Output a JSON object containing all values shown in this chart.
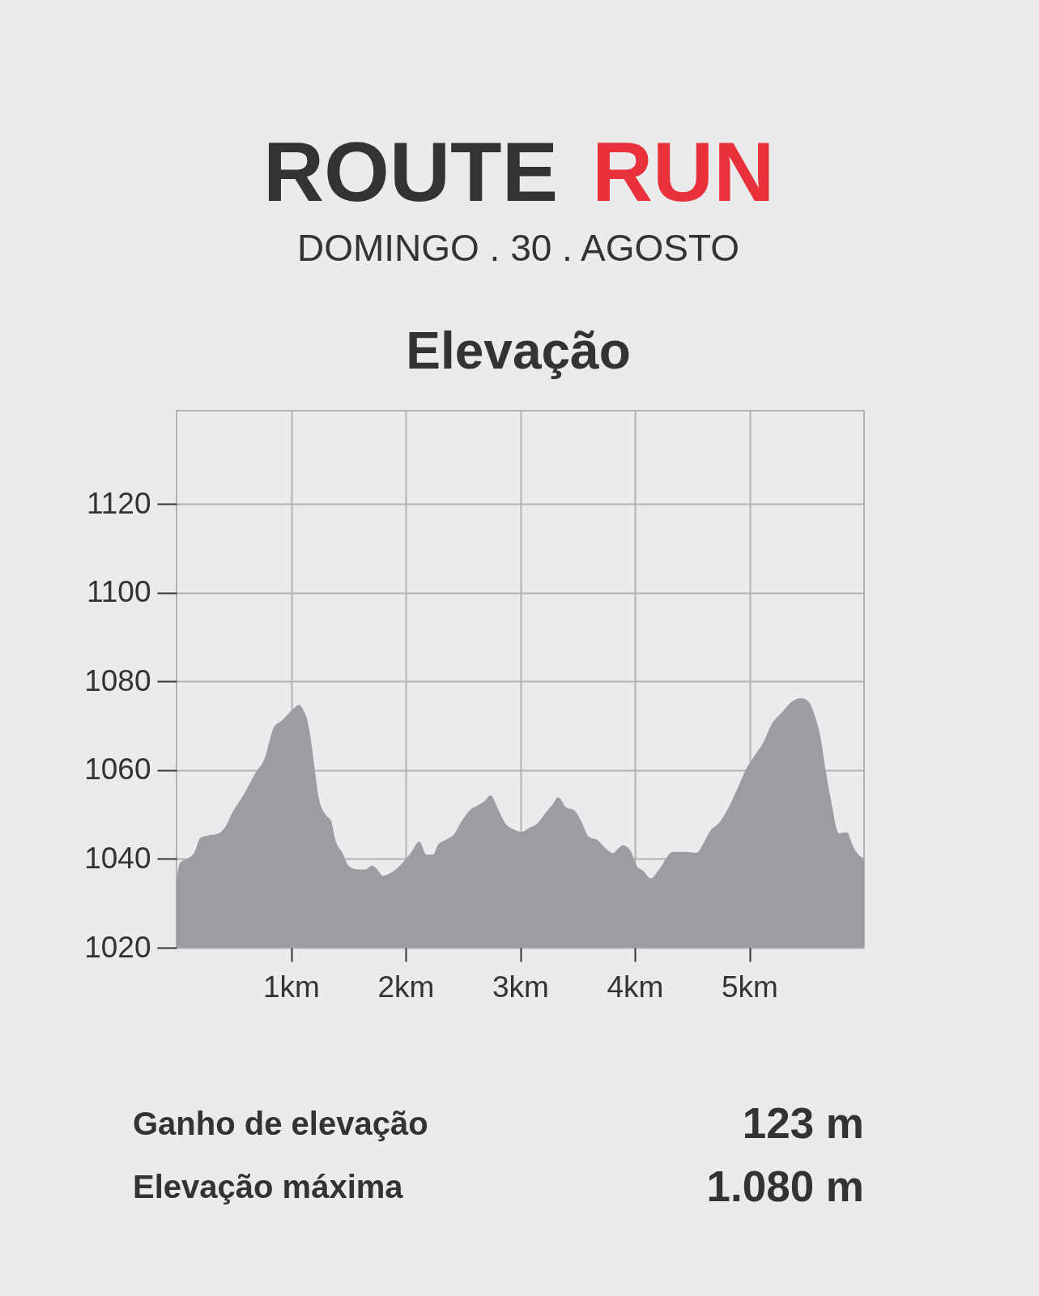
{
  "chart_data": {
    "type": "area",
    "title": "ROUTE RUN",
    "subtitle": "DOMINGO . 30 . AGOSTO",
    "annotations": [
      "Elevação",
      "Ganho de elevação",
      "123 m",
      "Elevação máxima",
      "1.080 m"
    ],
    "x": [
      0.0,
      0.03,
      0.11,
      0.15,
      0.21,
      0.28,
      0.37,
      0.42,
      0.49,
      0.58,
      0.69,
      0.77,
      0.85,
      0.92,
      1.01,
      1.07,
      1.1,
      1.15,
      1.18,
      1.21,
      1.24,
      1.3,
      1.35,
      1.38,
      1.45,
      1.5,
      1.57,
      1.64,
      1.71,
      1.75,
      1.8,
      1.88,
      1.96,
      2.04,
      2.12,
      2.18,
      2.24,
      2.28,
      2.35,
      2.42,
      2.49,
      2.56,
      2.64,
      2.69,
      2.74,
      2.81,
      2.88,
      2.94,
      3.01,
      3.08,
      3.15,
      3.22,
      3.28,
      3.33,
      3.4,
      3.47,
      3.53,
      3.6,
      3.67,
      3.74,
      3.81,
      3.86,
      3.9,
      3.96,
      4.02,
      4.07,
      4.14,
      4.21,
      4.33,
      4.45,
      4.54,
      4.59,
      4.66,
      4.73,
      4.8,
      4.89,
      4.98,
      5.05,
      5.12,
      5.19,
      5.29,
      5.38,
      5.45,
      5.51,
      5.57,
      5.62,
      5.66,
      5.71,
      5.78,
      5.85,
      5.9,
      5.94,
      6.0
    ],
    "series": [
      {
        "color": "#9c9da2",
        "values": [
          1035.2,
          1039.1,
          1040.3,
          1041.2,
          1044.8,
          1045.3,
          1045.8,
          1047.0,
          1050.6,
          1054.2,
          1059.4,
          1062.7,
          1069.7,
          1071.2,
          1073.6,
          1074.7,
          1073.9,
          1070.3,
          1065.5,
          1059.4,
          1053.9,
          1050.0,
          1048.5,
          1044.8,
          1041.2,
          1038.5,
          1037.7,
          1037.6,
          1038.5,
          1037.7,
          1036.2,
          1037.0,
          1038.8,
          1041.2,
          1043.9,
          1041.0,
          1041.0,
          1043.1,
          1044.3,
          1045.5,
          1048.6,
          1051.0,
          1052.2,
          1053.1,
          1054.3,
          1051.0,
          1047.7,
          1046.7,
          1046.1,
          1047.0,
          1048.0,
          1050.4,
          1052.2,
          1053.9,
          1051.6,
          1051.0,
          1048.6,
          1044.9,
          1044.3,
          1042.5,
          1041.3,
          1042.5,
          1043.1,
          1041.9,
          1038.3,
          1037.4,
          1035.6,
          1037.6,
          1041.6,
          1041.6,
          1041.4,
          1043.1,
          1046.4,
          1048.0,
          1050.7,
          1055.6,
          1060.7,
          1063.5,
          1066.2,
          1070.2,
          1073.2,
          1075.6,
          1076.2,
          1075.6,
          1072.3,
          1067.4,
          1060.7,
          1053.4,
          1045.8,
          1046.0,
          1043.1,
          1041.3,
          1040.1
        ]
      }
    ],
    "xlim": [
      0,
      6
    ],
    "xticks": [
      {
        "value": 1,
        "label": "1km"
      },
      {
        "value": 2,
        "label": "2km"
      },
      {
        "value": 3,
        "label": "3km"
      },
      {
        "value": 4,
        "label": "4km"
      },
      {
        "value": 5,
        "label": "5km"
      }
    ],
    "ylim": [
      1020,
      1141
    ],
    "yticks": [
      1020,
      1040,
      1060,
      1080,
      1100,
      1120
    ],
    "grid": true
  }
}
